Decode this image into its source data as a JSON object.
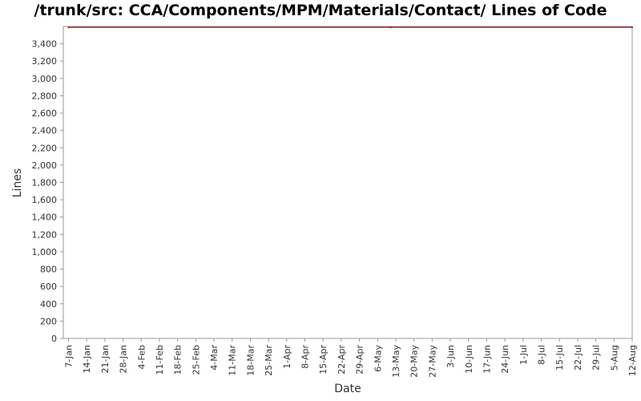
{
  "chart_data": {
    "type": "line",
    "title": "/trunk/src: CCA/Components/MPM/Materials/Contact/ Lines of Code",
    "xlabel": "Date",
    "ylabel": "Lines",
    "ylim": [
      0,
      3600
    ],
    "yticks": [
      "0",
      "200",
      "400",
      "600",
      "800",
      "1,000",
      "1,200",
      "1,400",
      "1,600",
      "1,800",
      "2,000",
      "2,200",
      "2,400",
      "2,600",
      "2,800",
      "3,000",
      "3,200",
      "3,400"
    ],
    "ytick_values": [
      0,
      200,
      400,
      600,
      800,
      1000,
      1200,
      1400,
      1600,
      1800,
      2000,
      2200,
      2400,
      2600,
      2800,
      3000,
      3200,
      3400
    ],
    "xticks": [
      "7-Jan",
      "14-Jan",
      "21-Jan",
      "28-Jan",
      "4-Feb",
      "11-Feb",
      "18-Feb",
      "25-Feb",
      "4-Mar",
      "11-Mar",
      "18-Mar",
      "25-Mar",
      "1-Apr",
      "8-Apr",
      "15-Apr",
      "22-Apr",
      "29-Apr",
      "6-May",
      "13-May",
      "20-May",
      "27-May",
      "3-Jun",
      "10-Jun",
      "17-Jun",
      "24-Jun",
      "1-Jul",
      "8-Jul",
      "15-Jul",
      "22-Jul",
      "29-Jul",
      "5-Aug",
      "12-Aug"
    ],
    "x_range": [
      "5-Jan",
      "12-Aug"
    ],
    "series": [
      {
        "x": [
          "7-Jan",
          "11-May",
          "12-Aug"
        ],
        "values": [
          3590,
          3590,
          3590
        ],
        "color": "#8b0000"
      }
    ],
    "grid": false
  }
}
